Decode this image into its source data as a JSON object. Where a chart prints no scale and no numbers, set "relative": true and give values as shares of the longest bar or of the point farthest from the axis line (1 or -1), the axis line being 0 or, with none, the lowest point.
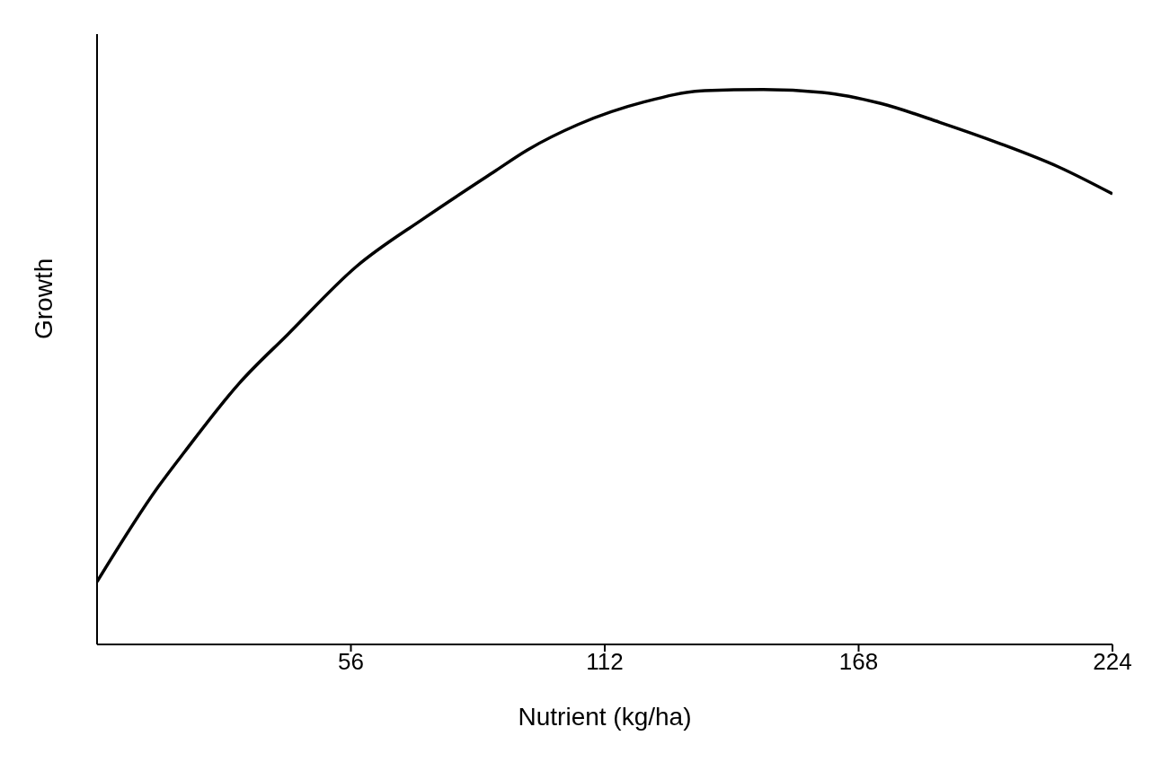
{
  "chart_data": {
    "type": "line",
    "xlabel": "Nutrient (kg/ha)",
    "ylabel": "Growth",
    "relative": true,
    "xlim": [
      0,
      224
    ],
    "xticks": [
      56,
      112,
      168,
      224
    ],
    "grid": false,
    "legend": false,
    "marker": "none",
    "line_style": "solid",
    "series": [
      {
        "color": "#000000",
        "x": [
          0,
          13.4,
          19.3,
          31.4,
          42.1,
          57.2,
          72.3,
          87.4,
          94.9,
          106.1,
          120.8,
          134,
          147,
          160,
          172.9,
          185.9,
          199.1,
          212,
          224
        ],
        "values": [
          0.113,
          0.283,
          0.347,
          0.471,
          0.559,
          0.681,
          0.769,
          0.851,
          0.891,
          0.937,
          0.978,
          0.998,
          1.0,
          0.995,
          0.975,
          0.941,
          0.903,
          0.861,
          0.812
        ]
      }
    ]
  }
}
